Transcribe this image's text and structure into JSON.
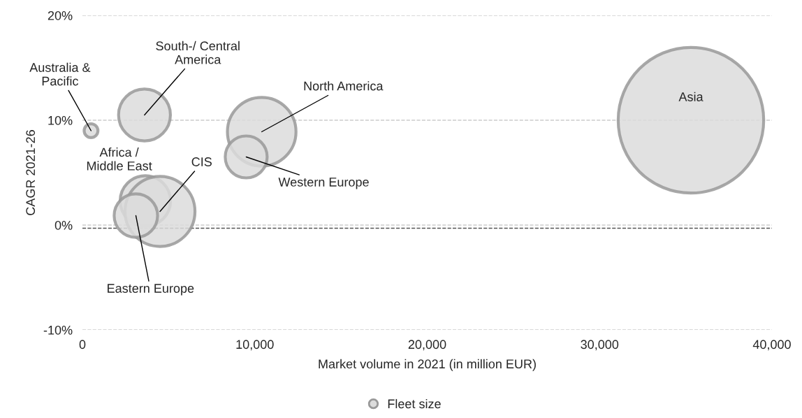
{
  "chart_data": {
    "type": "bubble",
    "xlabel": "Market volume in 2021 (in million EUR)",
    "ylabel": "CAGR 2021-26",
    "series": [
      {
        "name": "Fleet size",
        "color": "#dcdcdc",
        "x": [
          500,
          3600,
          10400,
          9500,
          3650,
          4500,
          3100,
          35300
        ],
        "values": [
          9.0,
          10.5,
          8.9,
          6.5,
          2.3,
          1.3,
          0.9,
          10.0
        ],
        "sizes": [
          0.009,
          0.127,
          0.222,
          0.083,
          0.12,
          0.231,
          0.089,
          1
        ]
      }
    ],
    "annotations": [
      {
        "text": "Australia &\nPacific",
        "x": 500,
        "y": 9.0
      },
      {
        "text": "South-/ Central\nAmerica",
        "x": 3600,
        "y": 10.5
      },
      {
        "text": "North America",
        "x": 10400,
        "y": 8.9
      },
      {
        "text": "Western Europe",
        "x": 9500,
        "y": 6.5
      },
      {
        "text": "Africa /\nMiddle East",
        "x": 3650,
        "y": 2.3
      },
      {
        "text": "CIS",
        "x": 4500,
        "y": 1.3
      },
      {
        "text": "Eastern Europe",
        "x": 3100,
        "y": 0.9
      },
      {
        "text": "Asia",
        "x": 35300,
        "y": 10.0
      }
    ],
    "ref_lines": [
      {
        "axis": "y",
        "value": -0.3,
        "color": "#555555",
        "line_style": "dashed"
      }
    ],
    "xlim": [
      0,
      40000
    ],
    "ylim": [
      -10,
      20
    ],
    "xticks": [
      {
        "value": 0,
        "label": "0"
      },
      {
        "value": 10000,
        "label": "10,000"
      },
      {
        "value": 20000,
        "label": "20,000"
      },
      {
        "value": 30000,
        "label": "30,000"
      },
      {
        "value": 40000,
        "label": "40,000"
      }
    ],
    "yticks": [
      {
        "value": -10,
        "label": "-10%"
      },
      {
        "value": 0,
        "label": "0%"
      },
      {
        "value": 10,
        "label": "10%"
      },
      {
        "value": 20,
        "label": "20%"
      }
    ],
    "grid": "y",
    "legend": "bottom",
    "marker": "circle"
  }
}
